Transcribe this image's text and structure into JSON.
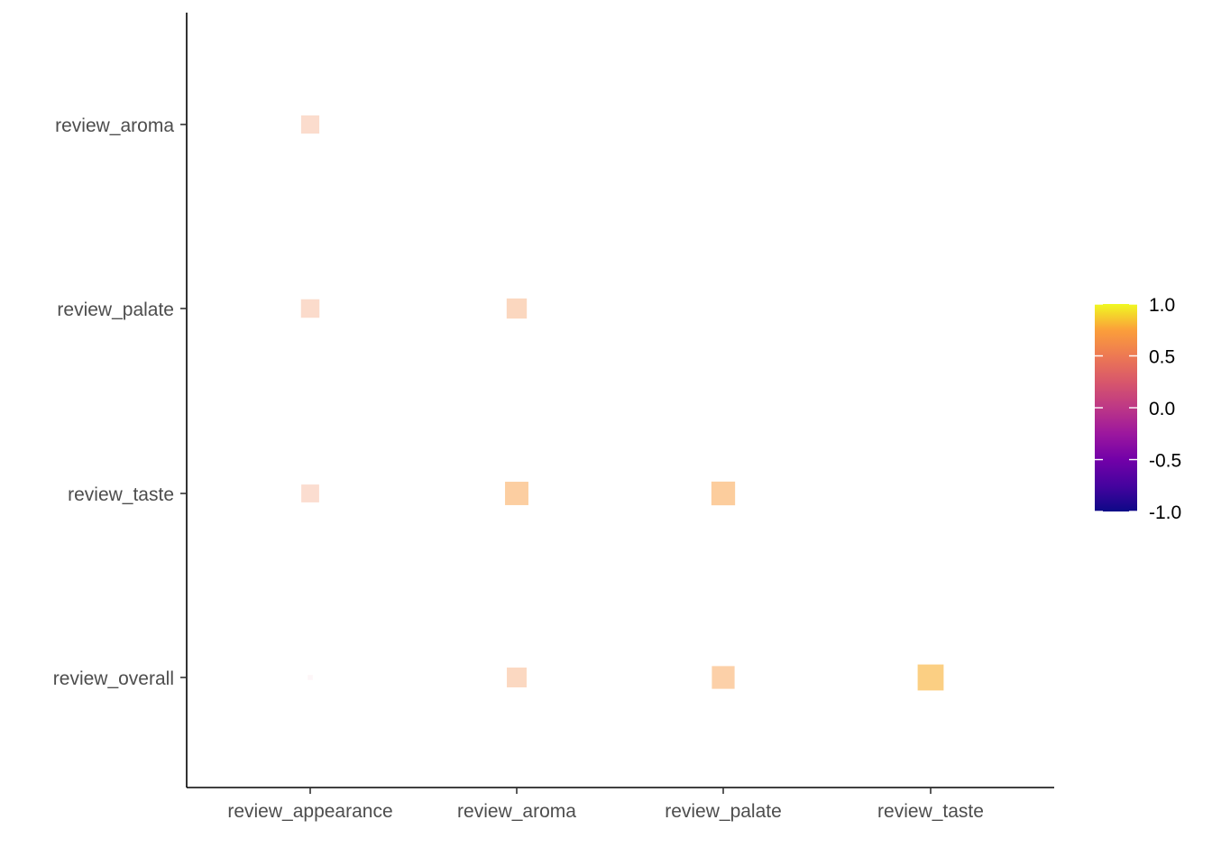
{
  "chart_data": {
    "type": "heatmap",
    "title": "",
    "xlabel": "",
    "ylabel": "",
    "x_categories": [
      "review_appearance",
      "review_aroma",
      "review_palate",
      "review_taste"
    ],
    "y_categories": [
      "review_aroma",
      "review_palate",
      "review_taste",
      "review_overall"
    ],
    "cells": [
      {
        "x": "review_appearance",
        "y": "review_aroma",
        "value": 0.56
      },
      {
        "x": "review_appearance",
        "y": "review_palate",
        "value": 0.57
      },
      {
        "x": "review_aroma",
        "y": "review_palate",
        "value": 0.62
      },
      {
        "x": "review_appearance",
        "y": "review_taste",
        "value": 0.55
      },
      {
        "x": "review_aroma",
        "y": "review_taste",
        "value": 0.72
      },
      {
        "x": "review_palate",
        "y": "review_taste",
        "value": 0.73
      },
      {
        "x": "review_appearance",
        "y": "review_overall",
        "value": 0.16
      },
      {
        "x": "review_aroma",
        "y": "review_overall",
        "value": 0.61
      },
      {
        "x": "review_palate",
        "y": "review_overall",
        "value": 0.7
      },
      {
        "x": "review_taste",
        "y": "review_overall",
        "value": 0.8
      }
    ],
    "color_scale": {
      "name": "plasma",
      "domain": [
        -1.0,
        1.0
      ],
      "ticks": [
        1.0,
        0.5,
        0.0,
        -0.5,
        -1.0
      ],
      "tick_labels": [
        "1.0",
        "0.5",
        "0.0",
        "-0.5",
        "-1.0"
      ]
    },
    "legend_position": "right",
    "grid": false
  }
}
